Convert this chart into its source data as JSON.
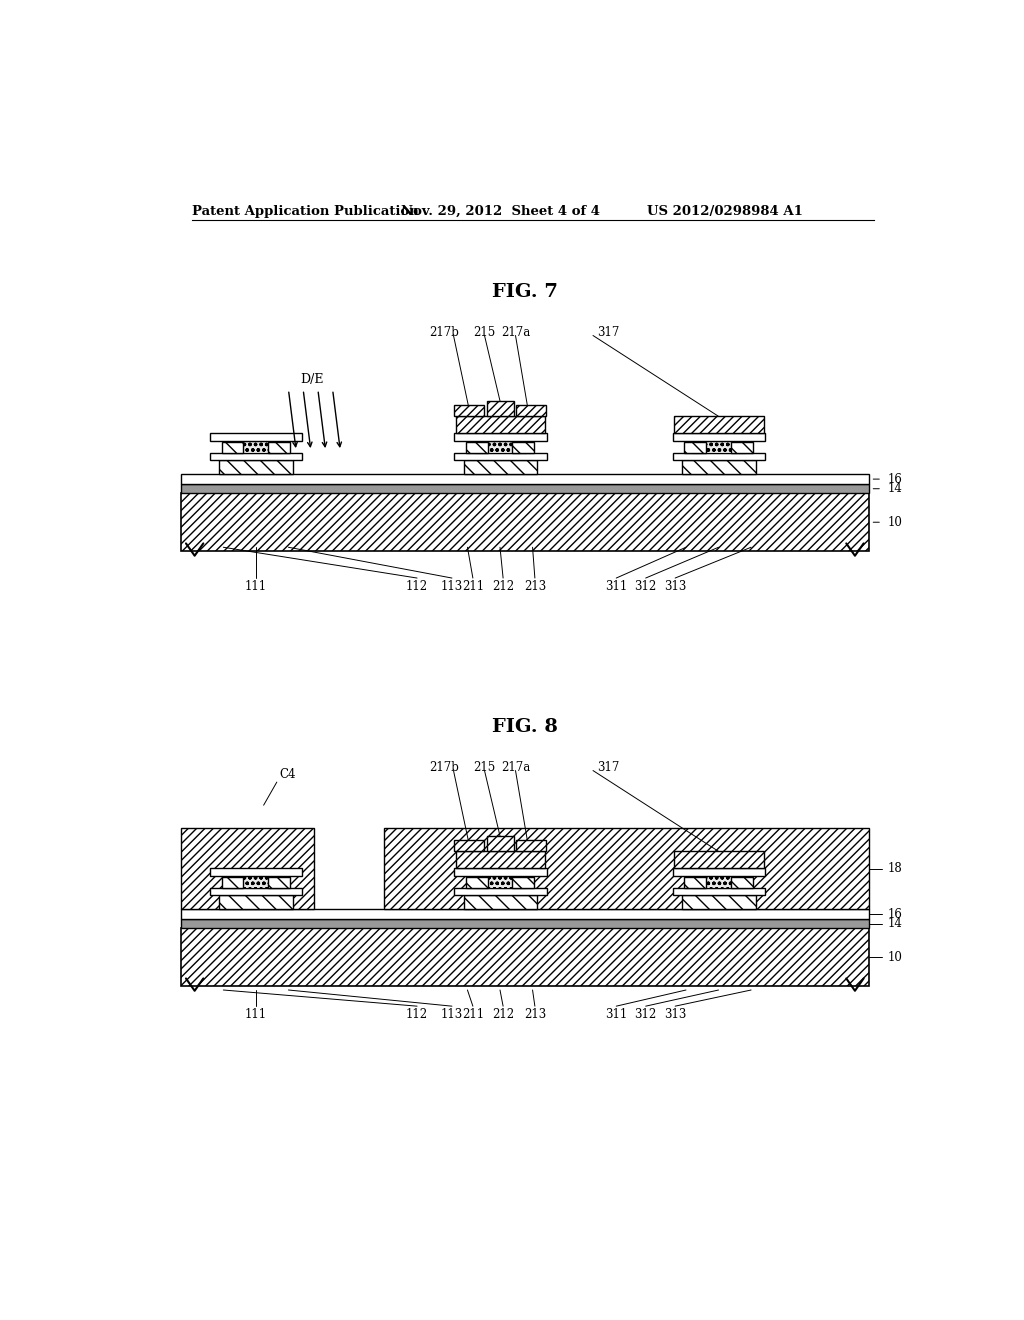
{
  "bg_color": "#ffffff",
  "header_left": "Patent Application Publication",
  "header_mid": "Nov. 29, 2012  Sheet 4 of 4",
  "header_right": "US 2012/0298984 A1",
  "fig7_title": "FIG. 7",
  "fig8_title": "FIG. 8",
  "label_color": "#000000",
  "line_color": "#000000"
}
